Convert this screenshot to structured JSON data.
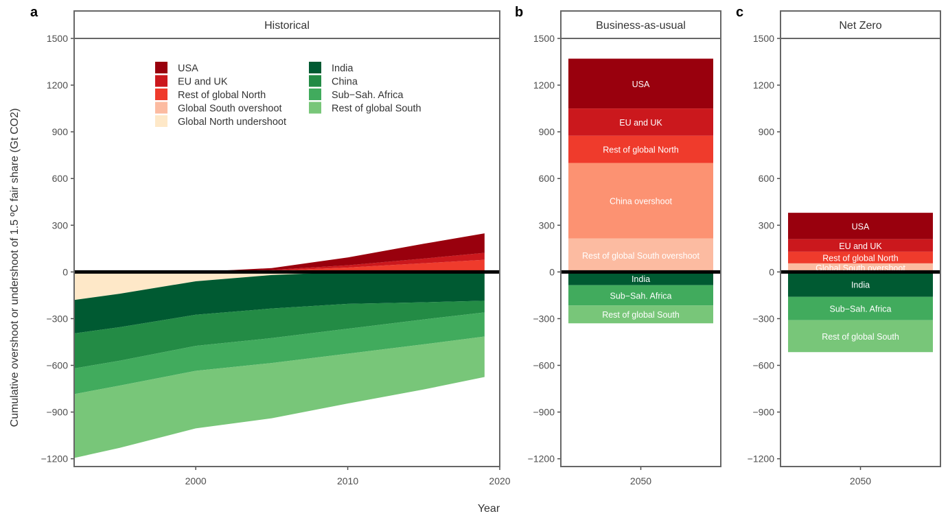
{
  "figure": {
    "ylabel": "Cumulative overshoot or undershoot of 1.5 ºC fair share (Gt CO2)",
    "xlabel": "Year"
  },
  "colors": {
    "USA": "#99000D",
    "EU and UK": "#CB181D",
    "Rest of global North": "#EF3B2C",
    "Global South overshoot": "#FCBBA1",
    "Global North undershoot": "#FEE8C8",
    "China overshoot": "#FC9272",
    "Rest of global South overshoot": "#FCBBA1",
    "India": "#005A32",
    "China": "#238B45",
    "Sub-Sah. Africa": "#41AB5D",
    "Rest of global South": "#78C679"
  },
  "legend": {
    "col1": [
      "USA",
      "EU and UK",
      "Rest of global North",
      "Global South overshoot",
      "Global North undershoot"
    ],
    "col2": [
      "India",
      "China",
      "Sub−Sah. Africa",
      "Rest of global South"
    ]
  },
  "chart_data": [
    {
      "panel": "a",
      "title": "Historical",
      "type": "area",
      "xlim": [
        1992,
        2020
      ],
      "ylim": [
        -1250,
        1500
      ],
      "xticks": [
        2000,
        2010,
        2020
      ],
      "yticks": [
        1500,
        1200,
        900,
        600,
        300,
        0,
        -300,
        -600,
        -900,
        -1200
      ],
      "x": [
        1992,
        1995,
        2000,
        2005,
        2010,
        2015,
        2019
      ],
      "positive_series": [
        {
          "name": "Global South overshoot",
          "color_key": "Global South overshoot",
          "values": [
            0,
            0,
            0,
            0,
            3,
            6,
            8
          ]
        },
        {
          "name": "Rest of global North",
          "color_key": "Rest of global North",
          "values": [
            0,
            0,
            0,
            8,
            25,
            50,
            70
          ]
        },
        {
          "name": "EU and UK",
          "color_key": "EU and UK",
          "values": [
            0,
            0,
            0,
            5,
            15,
            30,
            45
          ]
        },
        {
          "name": "USA",
          "color_key": "USA",
          "values": [
            0,
            0,
            0,
            12,
            50,
            95,
            125
          ]
        }
      ],
      "undershoot_series": {
        "name": "Global North undershoot",
        "color_key": "Global North undershoot",
        "values": [
          -180,
          -140,
          -60,
          -20,
          0,
          0,
          0
        ]
      },
      "negative_series": [
        {
          "name": "India",
          "color_key": "India",
          "values": [
            -215,
            -215,
            -215,
            -215,
            -205,
            -195,
            -185
          ]
        },
        {
          "name": "China",
          "color_key": "China",
          "values": [
            -225,
            -215,
            -200,
            -190,
            -160,
            -110,
            -75
          ]
        },
        {
          "name": "Sub-Sah. Africa",
          "color_key": "Sub-Sah. Africa",
          "values": [
            -165,
            -160,
            -160,
            -160,
            -160,
            -160,
            -155
          ]
        },
        {
          "name": "Rest of global South",
          "color_key": "Rest of global South",
          "values": [
            -410,
            -400,
            -370,
            -355,
            -320,
            -290,
            -260
          ]
        }
      ]
    },
    {
      "panel": "b",
      "title": "Business-as-usual",
      "type": "bar",
      "category": "2050",
      "ylim": [
        -1250,
        1500
      ],
      "yticks": [
        1500,
        1200,
        900,
        600,
        300,
        0,
        -300,
        -600,
        -900,
        -1200
      ],
      "segments": [
        {
          "label": "USA",
          "color_key": "USA",
          "from": 1050,
          "to": 1370,
          "text_color": "#ffffff"
        },
        {
          "label": "EU and UK",
          "color_key": "EU and UK",
          "from": 875,
          "to": 1050,
          "text_color": "#ffffff"
        },
        {
          "label": "Rest of global North",
          "color_key": "Rest of global North",
          "from": 700,
          "to": 875,
          "text_color": "#ffffff"
        },
        {
          "label": "China overshoot",
          "color_key": "China overshoot",
          "from": 215,
          "to": 700,
          "text_color": "#ffffff"
        },
        {
          "label": "Rest of global South overshoot",
          "color_key": "Rest of global South overshoot",
          "from": 0,
          "to": 215,
          "text_color": "#ffffff"
        },
        {
          "label": "India",
          "color_key": "India",
          "from": -85,
          "to": 0,
          "text_color": "#ffffff"
        },
        {
          "label": "Sub-Sah. Africa",
          "color_key": "Sub-Sah. Africa",
          "from": -215,
          "to": -85,
          "text_color": "#ffffff"
        },
        {
          "label": "Rest of global South",
          "color_key": "Rest of global South",
          "from": -330,
          "to": -215,
          "text_color": "#ffffff"
        }
      ]
    },
    {
      "panel": "c",
      "title": "Net Zero",
      "type": "bar",
      "category": "2050",
      "ylim": [
        -1250,
        1500
      ],
      "yticks": [
        1500,
        1200,
        900,
        600,
        300,
        0,
        -300,
        -600,
        -900,
        -1200
      ],
      "segments": [
        {
          "label": "USA",
          "color_key": "USA",
          "from": 210,
          "to": 380,
          "text_color": "#ffffff"
        },
        {
          "label": "EU and UK",
          "color_key": "EU and UK",
          "from": 130,
          "to": 210,
          "text_color": "#ffffff"
        },
        {
          "label": "Rest of global North",
          "color_key": "Rest of global North",
          "from": 55,
          "to": 130,
          "text_color": "#ffffff"
        },
        {
          "label": "Global South overshoot",
          "color_key": "Global South overshoot",
          "from": 0,
          "to": 55,
          "text_color": "#ffffff"
        },
        {
          "label": "India",
          "color_key": "India",
          "from": -160,
          "to": 0,
          "text_color": "#ffffff"
        },
        {
          "label": "Sub-Sah. Africa",
          "color_key": "Sub-Sah. Africa",
          "from": -310,
          "to": -160,
          "text_color": "#ffffff"
        },
        {
          "label": "Rest of global South",
          "color_key": "Rest of global South",
          "from": -515,
          "to": -310,
          "text_color": "#ffffff"
        }
      ]
    }
  ]
}
